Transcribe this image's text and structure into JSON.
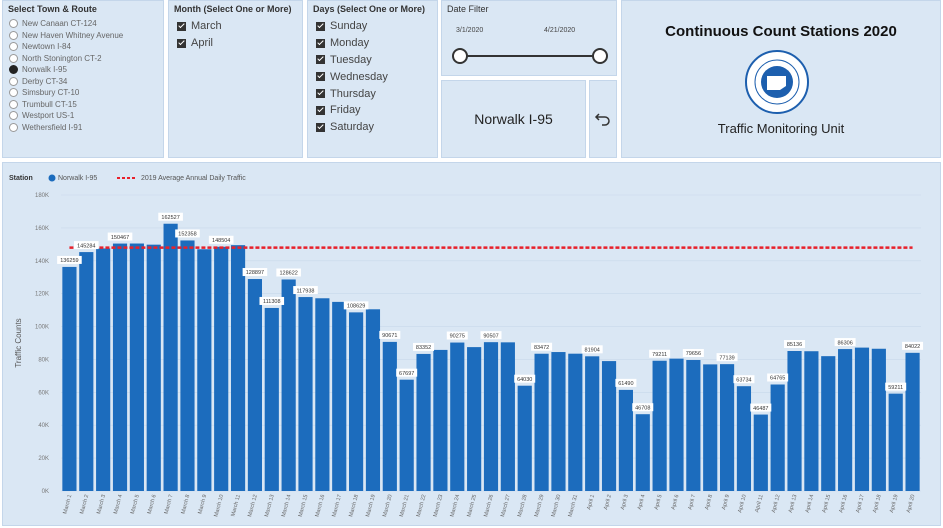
{
  "filters": {
    "town": {
      "title": "Select Town & Route",
      "options": [
        "New Canaan CT-124",
        "New Haven Whitney Avenue",
        "Newtown I-84",
        "North Stonington CT-2",
        "Norwalk I-95",
        "Derby CT-34",
        "Simsbury CT-10",
        "Trumbull CT-15",
        "Westport US-1",
        "Wethersfield I-91"
      ],
      "selected": "Norwalk I-95"
    },
    "month": {
      "title": "Month (Select One or More)",
      "options": [
        "March",
        "April"
      ]
    },
    "days": {
      "title": "Days (Select One or More)",
      "options": [
        "Sunday",
        "Monday",
        "Tuesday",
        "Wednesday",
        "Thursday",
        "Friday",
        "Saturday"
      ]
    },
    "date": {
      "title": "Date Filter",
      "start": "3/1/2020",
      "end": "4/21/2020"
    }
  },
  "station_card": "Norwalk I-95",
  "header": {
    "title": "Continuous Count Stations 2020",
    "subtitle": "Traffic Monitoring Unit"
  },
  "chart_data": {
    "type": "bar",
    "legend_title": "Station",
    "y_label": "Traffic Counts",
    "categories": [
      "March 1",
      "March 2",
      "March 3",
      "March 4",
      "March 5",
      "March 6",
      "March 7",
      "March 8",
      "March 9",
      "March 10",
      "March 11",
      "March 12",
      "March 13",
      "March 14",
      "March 15",
      "March 16",
      "March 17",
      "March 18",
      "March 19",
      "March 20",
      "March 21",
      "March 22",
      "March 23",
      "March 24",
      "March 25",
      "March 26",
      "March 27",
      "March 28",
      "March 29",
      "March 30",
      "March 31",
      "April 1",
      "April 2",
      "April 3",
      "April 4",
      "April 5",
      "April 6",
      "April 7",
      "April 8",
      "April 9",
      "April 10",
      "April 11",
      "April 12",
      "April 13",
      "April 14",
      "April 15",
      "April 16",
      "April 17",
      "April 18",
      "April 19",
      "April 20"
    ],
    "series": [
      {
        "name": "Norwalk I-95",
        "color": "#1c6cbd",
        "values": [
          136259,
          145284,
          147500,
          150467,
          150500,
          149800,
          162527,
          152358,
          147000,
          148504,
          149500,
          128897,
          111308,
          128622,
          117938,
          117200,
          115000,
          108629,
          110500,
          90671,
          67697,
          83352,
          85800,
          90275,
          87500,
          90507,
          90400,
          64030,
          83472,
          84500,
          83500,
          81904,
          79000,
          61490,
          46708,
          79211,
          80500,
          79656,
          77000,
          77139,
          63734,
          46487,
          64765,
          85136,
          85000,
          82000,
          86306,
          87200,
          86500,
          59211,
          84022
        ],
        "value_labels": [
          "136259",
          "145284",
          null,
          "150467",
          null,
          null,
          "162527",
          "152358",
          null,
          "148504",
          null,
          "128897",
          "111308",
          "128622",
          "117938",
          null,
          null,
          "108629",
          null,
          "90671",
          "67697",
          "83352",
          null,
          "90275",
          null,
          "90507",
          null,
          "64030",
          "83472",
          null,
          null,
          "81904",
          null,
          "61490",
          "46708",
          "79211",
          null,
          "79656",
          null,
          "77139",
          "63734",
          "46487",
          "64765",
          "85136",
          null,
          null,
          "86306",
          null,
          null,
          "59211",
          "84022"
        ]
      }
    ],
    "reference_line": {
      "name": "2019 Average Annual Daily Traffic",
      "value": 148000,
      "color": "#e8212b"
    },
    "ylim": [
      0,
      180000
    ],
    "yticks": [
      {
        "value": 0,
        "label": "0K"
      },
      {
        "value": 20000,
        "label": "20K"
      },
      {
        "value": 40000,
        "label": "40K"
      },
      {
        "value": 60000,
        "label": "60K"
      },
      {
        "value": 80000,
        "label": "80K"
      },
      {
        "value": 100000,
        "label": "100K"
      },
      {
        "value": 120000,
        "label": "120K"
      },
      {
        "value": 140000,
        "label": "140K"
      },
      {
        "value": 160000,
        "label": "160K"
      },
      {
        "value": 180000,
        "label": "180K"
      }
    ],
    "grid": true
  }
}
